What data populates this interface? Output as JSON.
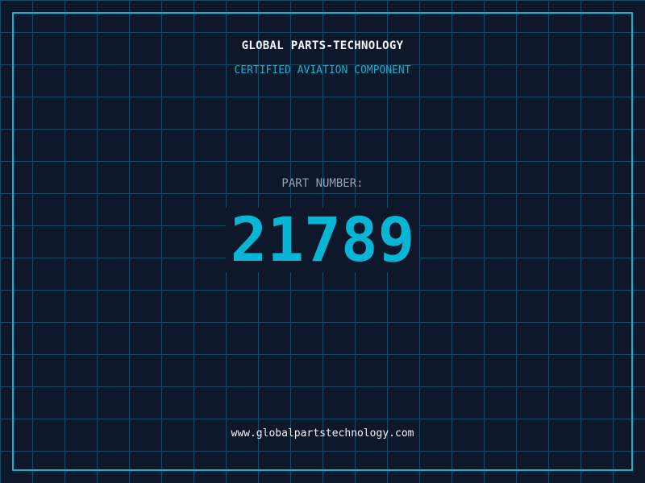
{
  "header": {
    "title": "GLOBAL PARTS-TECHNOLOGY",
    "subtitle": "CERTIFIED AVIATION COMPONENT"
  },
  "main": {
    "label": "PART NUMBER:",
    "part_number": "21789"
  },
  "footer": {
    "url": "www.globalpartstechnology.com"
  },
  "colors": {
    "background": "#0f172a",
    "accent": "#06b6d4",
    "grid": "#155e75",
    "label": "#94a3b8"
  }
}
